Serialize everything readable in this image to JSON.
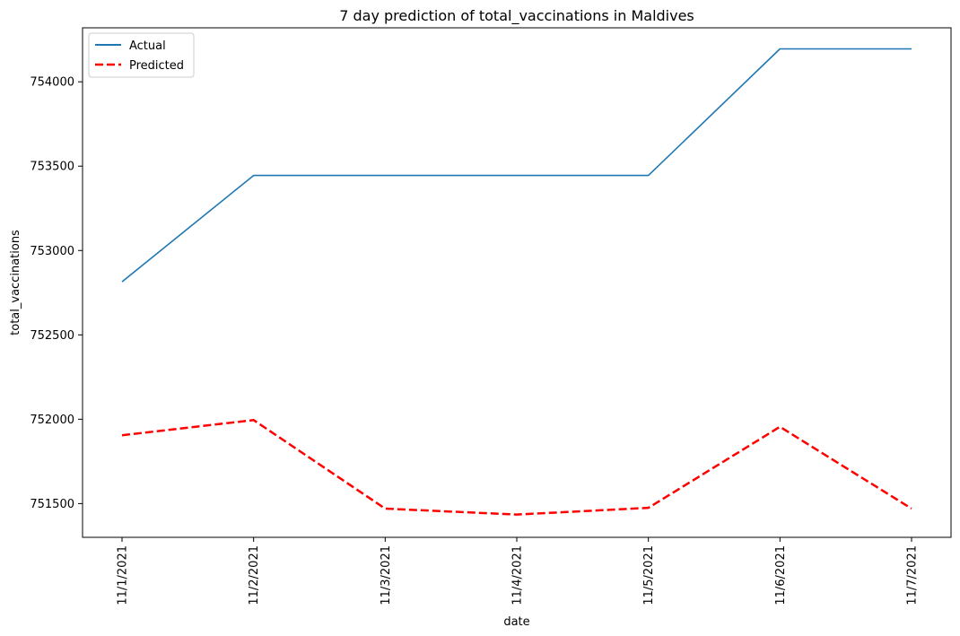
{
  "chart_data": {
    "type": "line",
    "title": "7 day prediction of total_vaccinations in Maldives",
    "xlabel": "date",
    "ylabel": "total_vaccinations",
    "categories": [
      "11/1/2021",
      "11/2/2021",
      "11/3/2021",
      "11/4/2021",
      "11/5/2021",
      "11/6/2021",
      "11/7/2021"
    ],
    "yticks": [
      751500,
      752000,
      752500,
      753000,
      753500,
      754000
    ],
    "ylim": [
      751300,
      754320
    ],
    "grid": false,
    "legend": "top-left",
    "series": [
      {
        "name": "Actual",
        "color": "#1f77b4",
        "style": "solid",
        "values": [
          752815,
          753445,
          753445,
          753445,
          753445,
          754195,
          754195
        ]
      },
      {
        "name": "Predicted",
        "color": "#ff0000",
        "style": "dashed",
        "values": [
          751905,
          751995,
          751470,
          751435,
          751475,
          751955,
          751470
        ]
      }
    ]
  }
}
